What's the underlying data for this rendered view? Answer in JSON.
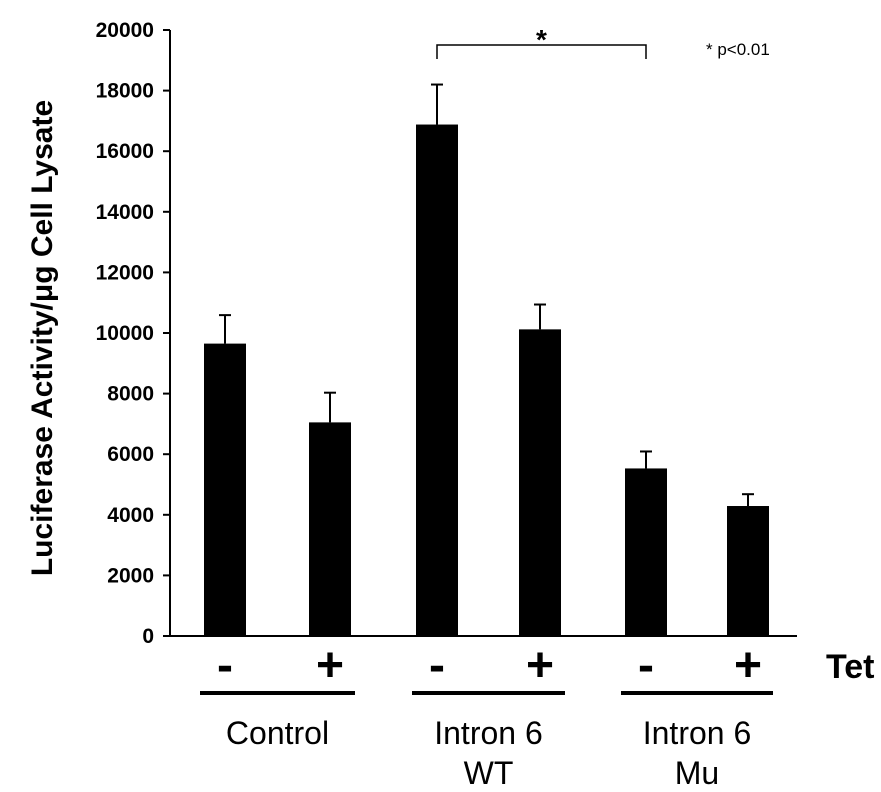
{
  "chart_data": {
    "type": "bar",
    "ylabel": "Luciferase Activity/μg Cell Lysate",
    "ylim": [
      0,
      20000
    ],
    "yticks": [
      0,
      2000,
      4000,
      6000,
      8000,
      10000,
      12000,
      14000,
      16000,
      18000,
      20000
    ],
    "ytick_labels": [
      "0",
      "2000",
      "4000",
      "6000",
      "8000",
      "10000",
      "12000",
      "14000",
      "16000",
      "18000",
      "20000"
    ],
    "grid": false,
    "bar_color": "#000000",
    "x_axis_title": "Tet",
    "categories": [
      "-",
      "+",
      "-",
      "+",
      "-",
      "+"
    ],
    "values": [
      9650,
      7050,
      16880,
      10120,
      5530,
      4290
    ],
    "error_upper": [
      940,
      980,
      1320,
      820,
      560,
      390
    ],
    "groups": [
      {
        "label_lines": [
          "Control"
        ],
        "bars": [
          0,
          1
        ]
      },
      {
        "label_lines": [
          "Intron 6",
          "WT"
        ],
        "bars": [
          2,
          3
        ]
      },
      {
        "label_lines": [
          "Intron 6",
          "Mu"
        ],
        "bars": [
          4,
          5
        ]
      }
    ],
    "significance": {
      "from_bar": 2,
      "to_bar": 4,
      "marker": "*",
      "note": "* p<0.01"
    }
  }
}
